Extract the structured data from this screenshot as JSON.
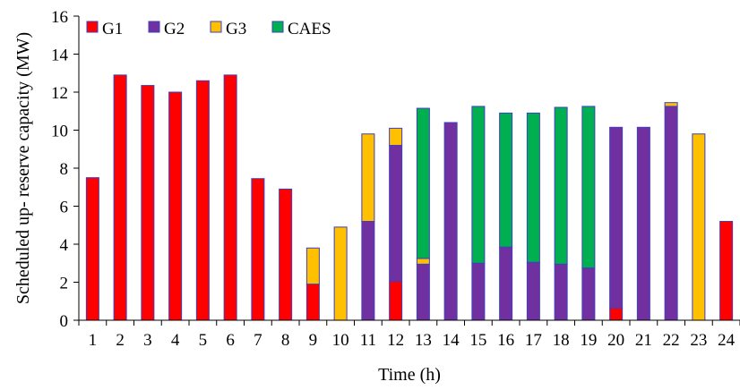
{
  "chart_data": {
    "type": "bar",
    "stacked": true,
    "xlabel": "Time (h)",
    "ylabel": "Scheduled up- reserve capacity (MW)",
    "ylim": [
      0,
      16
    ],
    "yticks": [
      0,
      2,
      4,
      6,
      8,
      10,
      12,
      14,
      16
    ],
    "grid": false,
    "legend_position": "top-left",
    "categories": [
      "1",
      "2",
      "3",
      "4",
      "5",
      "6",
      "7",
      "8",
      "9",
      "10",
      "11",
      "12",
      "13",
      "14",
      "15",
      "16",
      "17",
      "18",
      "19",
      "20",
      "21",
      "22",
      "23",
      "24"
    ],
    "series": [
      {
        "name": "G1",
        "color": "#ff0000",
        "values": [
          7.5,
          12.9,
          12.35,
          12.0,
          12.6,
          12.9,
          7.45,
          6.9,
          1.9,
          0,
          0,
          2.05,
          0,
          0,
          0,
          0,
          0,
          0,
          0,
          0.65,
          0,
          0,
          0,
          5.2
        ]
      },
      {
        "name": "G2",
        "color": "#7030a0",
        "values": [
          0,
          0,
          0,
          0,
          0,
          0,
          0,
          0,
          0,
          0,
          5.2,
          7.15,
          2.95,
          10.4,
          3.0,
          3.85,
          3.05,
          2.95,
          2.75,
          9.5,
          10.15,
          11.25,
          0,
          0
        ]
      },
      {
        "name": "G3",
        "color": "#ffc000",
        "values": [
          0,
          0,
          0,
          0,
          0,
          0,
          0,
          0,
          1.9,
          4.9,
          4.6,
          0.9,
          0.3,
          0,
          0,
          0,
          0,
          0,
          0,
          0,
          0,
          0.2,
          9.8,
          0
        ]
      },
      {
        "name": "CAES",
        "color": "#00b050",
        "values": [
          0,
          0,
          0,
          0,
          0,
          0,
          0,
          0,
          0,
          0,
          0,
          0,
          7.9,
          0,
          8.25,
          7.05,
          7.85,
          8.25,
          8.5,
          0,
          0,
          0,
          0,
          0
        ]
      }
    ]
  }
}
